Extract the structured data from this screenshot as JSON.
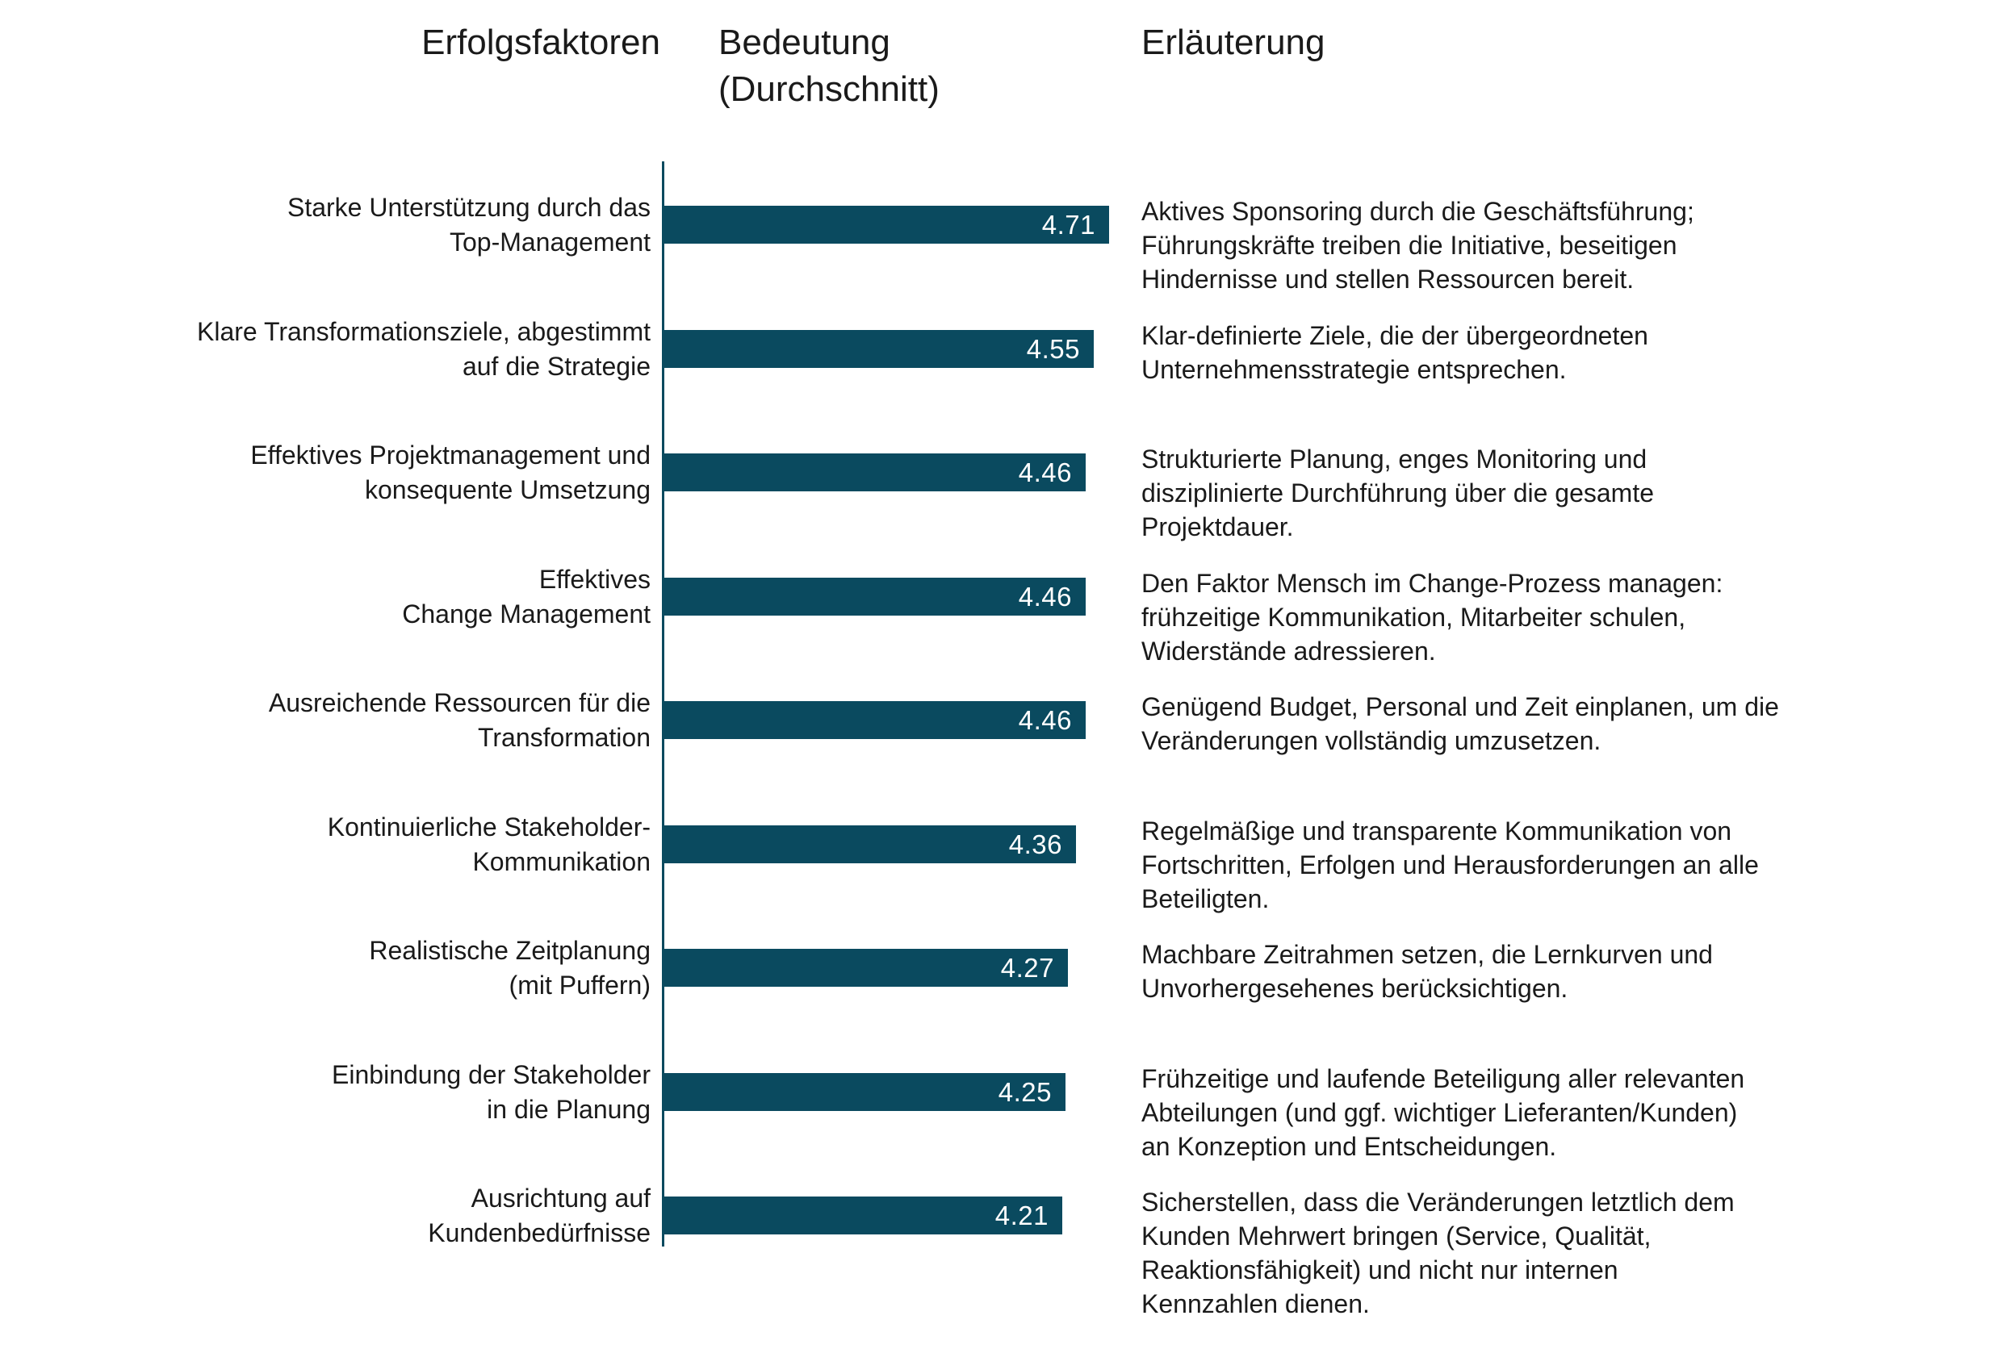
{
  "headers": {
    "factors": "Erfolgsfaktoren",
    "importance_line1": "Bedeutung",
    "importance_line2": "(Durchschnitt)",
    "explanation": "Erläuterung"
  },
  "colors": {
    "bar": "#0a4a5f",
    "axis": "#0a4a5f",
    "text": "#1a1a1a",
    "value_text": "#ffffff",
    "background": "#ffffff"
  },
  "rows": [
    {
      "factor": "Starke Unterstützung durch das\nTop-Management",
      "value": 4.71,
      "value_label": "4.71",
      "explanation": "Aktives Sponsoring durch die Geschäftsführung;\nFührungskräfte treiben die Initiative, beseitigen\nHindernisse und stellen Ressourcen bereit."
    },
    {
      "factor": "Klare Transformationsziele, abgestimmt\nauf die Strategie",
      "value": 4.55,
      "value_label": "4.55",
      "explanation": "Klar-definierte Ziele, die der übergeordneten\nUnternehmensstrategie entsprechen."
    },
    {
      "factor": "Effektives Projektmanagement und\nkonsequente Umsetzung",
      "value": 4.46,
      "value_label": "4.46",
      "explanation": "Strukturierte Planung, enges Monitoring und\ndisziplinierte Durchführung über die gesamte\nProjektdauer."
    },
    {
      "factor": "Effektives\nChange Management",
      "value": 4.46,
      "value_label": "4.46",
      "explanation": "Den Faktor Mensch im Change-Prozess managen:\nfrühzeitige Kommunikation, Mitarbeiter schulen,\nWiderstände adressieren."
    },
    {
      "factor": "Ausreichende Ressourcen für die\nTransformation",
      "value": 4.46,
      "value_label": "4.46",
      "explanation": "Genügend Budget, Personal und Zeit einplanen, um die\nVeränderungen vollständig umzusetzen."
    },
    {
      "factor": "Kontinuierliche Stakeholder-\nKommunikation",
      "value": 4.36,
      "value_label": "4.36",
      "explanation": "Regelmäßige und transparente Kommunikation von\nFortschritten, Erfolgen und Herausforderungen an alle\nBeteiligten."
    },
    {
      "factor": "Realistische Zeitplanung\n(mit Puffern)",
      "value": 4.27,
      "value_label": "4.27",
      "explanation": "Machbare Zeitrahmen setzen, die Lernkurven und\nUnvorhergesehenes berücksichtigen."
    },
    {
      "factor": "Einbindung der Stakeholder\nin die Planung",
      "value": 4.25,
      "value_label": "4.25",
      "explanation": "Frühzeitige und laufende Beteiligung aller relevanten\nAbteilungen (und ggf. wichtiger Lieferanten/Kunden)\nan Konzeption und Entscheidungen."
    },
    {
      "factor": "Ausrichtung auf\nKundenbedürfnisse",
      "value": 4.21,
      "value_label": "4.21",
      "explanation": "Sicherstellen, dass die Veränderungen letztlich dem\nKunden Mehrwert bringen (Service, Qualität,\nReaktionsfähigkeit) und nicht nur internen\nKennzahlen dienen."
    }
  ],
  "chart_data": {
    "type": "bar",
    "orientation": "horizontal",
    "title": "",
    "column_headers": [
      "Erfolgsfaktoren",
      "Bedeutung (Durchschnitt)",
      "Erläuterung"
    ],
    "categories": [
      "Starke Unterstützung durch das Top-Management",
      "Klare Transformationsziele, abgestimmt auf die Strategie",
      "Effektives Projektmanagement und konsequente Umsetzung",
      "Effektives Change Management",
      "Ausreichende Ressourcen für die Transformation",
      "Kontinuierliche Stakeholder-Kommunikation",
      "Realistische Zeitplanung (mit Puffern)",
      "Einbindung der Stakeholder in die Planung",
      "Ausrichtung auf Kundenbedürfnisse"
    ],
    "values": [
      4.71,
      4.55,
      4.46,
      4.46,
      4.46,
      4.36,
      4.27,
      4.25,
      4.21
    ],
    "data_labels": [
      "4.71",
      "4.55",
      "4.46",
      "4.46",
      "4.46",
      "4.36",
      "4.27",
      "4.25",
      "4.21"
    ],
    "annotations": [
      "Aktives Sponsoring durch die Geschäftsführung; Führungskräfte treiben die Initiative, beseitigen Hindernisse und stellen Ressourcen bereit.",
      "Klar-definierte Ziele, die der übergeordneten Unternehmensstrategie entsprechen.",
      "Strukturierte Planung, enges Monitoring und disziplinierte Durchführung über die gesamte Projektdauer.",
      "Den Faktor Mensch im Change-Prozess managen: frühzeitige Kommunikation, Mitarbeiter schulen, Widerstände adressieren.",
      "Genügend Budget, Personal und Zeit einplanen, um die Veränderungen vollständig umzusetzen.",
      "Regelmäßige und transparente Kommunikation von Fortschritten, Erfolgen und Herausforderungen an alle Beteiligten.",
      "Machbare Zeitrahmen setzen, die Lernkurven und Unvorhergesehenes berücksichtigen.",
      "Frühzeitige und laufende Beteiligung aller relevanten Abteilungen (und ggf. wichtiger Lieferanten/Kunden) an Konzeption und Entscheidungen.",
      "Sicherstellen, dass die Veränderungen letztlich dem Kunden Mehrwert bringen (Service, Qualität, Reaktionsfähigkeit) und nicht nur internen Kennzahlen dienen."
    ],
    "xlabel": "",
    "ylabel": "",
    "xlim": [
      0,
      5
    ],
    "grid": false,
    "legend": false,
    "bar_color": "#0a4a5f"
  }
}
